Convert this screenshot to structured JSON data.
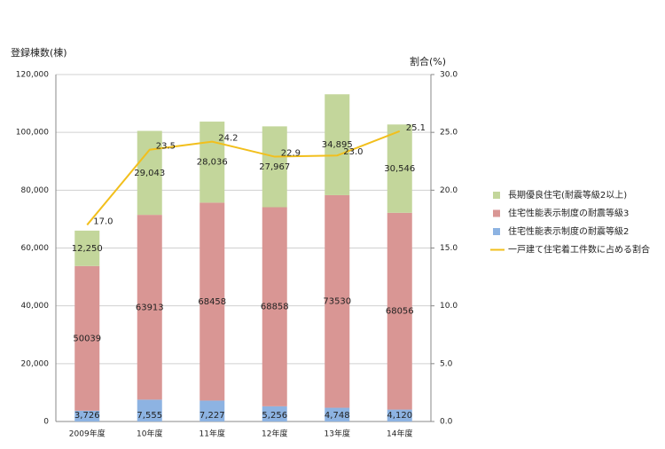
{
  "chart_data": {
    "type": "bar",
    "y_label": "登録棟数(棟)",
    "y2_label": "割合(%)",
    "categories": [
      "2009年度",
      "10年度",
      "11年度",
      "12年度",
      "13年度",
      "14年度"
    ],
    "series": [
      {
        "name": "住宅性能表示制度の耐震等級2",
        "color": "#8db3e2",
        "values": [
          3726,
          7555,
          7227,
          5256,
          4748,
          4120
        ],
        "value_labels": [
          "3,726",
          "7,555",
          "7,227",
          "5,256",
          "4,748",
          "4,120"
        ]
      },
      {
        "name": "住宅性能表示制度の耐震等級3",
        "color": "#d99694",
        "values": [
          50039,
          63913,
          68458,
          68858,
          73530,
          68056
        ]
      },
      {
        "name": "長期優良住宅(耐震等級2以上)",
        "color": "#c3d69b",
        "values": [
          12250,
          29043,
          28036,
          27967,
          34895,
          30546
        ],
        "value_labels": [
          "12,250",
          "29,043",
          "28,036",
          "27,967",
          "34,895",
          "30,546"
        ]
      },
      {
        "name": "一戸建て住宅着工件数に占める割合",
        "type": "line",
        "axis": "y2",
        "color": "#f2bf1c",
        "values": [
          17.0,
          23.5,
          24.2,
          22.9,
          23.0,
          25.1
        ],
        "value_labels": [
          "17.0",
          "23.5",
          "24.2",
          "22.9",
          "23.0",
          "25.1"
        ]
      }
    ],
    "stacked": true,
    "ylim": [
      0,
      120000
    ],
    "yticks": [
      0,
      {
        "value": 20000,
        "label": "20,000"
      },
      {
        "value": 40000,
        "label": "40,000"
      },
      {
        "value": 60000,
        "label": "60,000"
      },
      {
        "value": 80000,
        "label": "80,000"
      },
      {
        "value": 100000,
        "label": "100,000"
      },
      {
        "value": 120000,
        "label": "120,000"
      }
    ],
    "y2lim": [
      0,
      30
    ],
    "y2ticks": [
      {
        "value": 0,
        "label": "0.0"
      },
      {
        "value": 5,
        "label": "5.0"
      },
      {
        "value": 10,
        "label": "10.0"
      },
      {
        "value": 15,
        "label": "15.0"
      },
      {
        "value": 20,
        "label": "20.0"
      },
      {
        "value": 25,
        "label": "25.0"
      },
      {
        "value": 30,
        "label": "30.0"
      }
    ],
    "grid": true,
    "legend": "right"
  }
}
